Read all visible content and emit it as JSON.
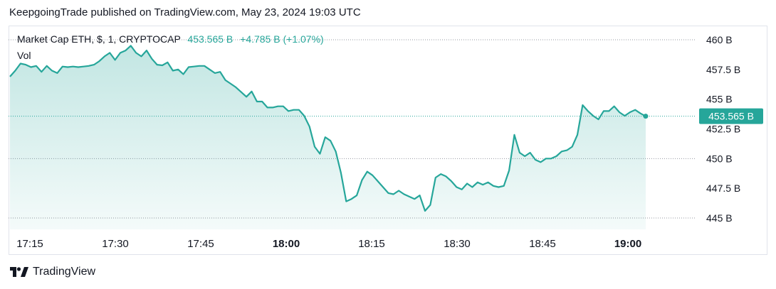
{
  "header": {
    "published_text": "KeepgoingTrade published on TradingView.com, May 23, 2024 19:03 UTC"
  },
  "legend": {
    "symbol": "Market Cap ETH, $, 1, CRYPTOCAP",
    "last": "453.565 B",
    "change": "+4.785 B (+1.07%)",
    "vol_label": "Vol"
  },
  "footer": {
    "brand": "TradingView",
    "logo_icon": "tradingview-logo-icon"
  },
  "colors": {
    "line": "#26a69a",
    "text": "#131722",
    "grid": "#e0e3eb",
    "badge": "#26a69a"
  },
  "chart_data": {
    "type": "area",
    "x_unit": "UTC time, 1-minute bars",
    "x_ticks": [
      {
        "label": "17:15",
        "t": 1035,
        "bold": false
      },
      {
        "label": "17:30",
        "t": 1050,
        "bold": false
      },
      {
        "label": "17:45",
        "t": 1065,
        "bold": false
      },
      {
        "label": "18:00",
        "t": 1080,
        "bold": true
      },
      {
        "label": "18:15",
        "t": 1095,
        "bold": false
      },
      {
        "label": "18:30",
        "t": 1110,
        "bold": false
      },
      {
        "label": "18:45",
        "t": 1125,
        "bold": false
      },
      {
        "label": "19:00",
        "t": 1140,
        "bold": true
      }
    ],
    "y_unit": "B",
    "y_ticks": [
      445,
      447.5,
      450,
      452.5,
      455,
      457.5,
      460
    ],
    "y_tick_labels": [
      "445 B",
      "447.5 B",
      "450 B",
      "452.5 B",
      "455 B",
      "457.5 B",
      "460 B"
    ],
    "ylim": [
      444.0,
      461.0
    ],
    "xlim": [
      1031.6,
      1163.2
    ],
    "reference_lines": [
      445,
      450,
      460
    ],
    "last_value": 453.565,
    "last_value_label": "453.565 B",
    "values": [
      456.9,
      457.4,
      458.0,
      457.9,
      457.7,
      457.8,
      457.3,
      457.8,
      457.4,
      457.2,
      457.75,
      457.7,
      457.75,
      457.7,
      457.75,
      457.8,
      457.9,
      458.2,
      458.6,
      458.9,
      458.3,
      458.9,
      459.1,
      459.5,
      458.9,
      458.6,
      459.1,
      458.4,
      457.9,
      457.85,
      458.1,
      457.4,
      457.5,
      457.1,
      457.7,
      457.75,
      457.8,
      457.8,
      457.5,
      457.2,
      457.3,
      456.6,
      456.3,
      456.0,
      455.6,
      455.2,
      455.65,
      454.8,
      454.8,
      454.3,
      454.3,
      454.4,
      454.4,
      454.0,
      454.1,
      454.1,
      453.6,
      452.7,
      451.0,
      450.4,
      451.8,
      451.5,
      450.6,
      448.8,
      446.4,
      446.6,
      446.9,
      448.2,
      448.9,
      448.6,
      448.1,
      447.6,
      447.1,
      447.0,
      447.3,
      447.0,
      446.8,
      446.6,
      446.9,
      445.6,
      446.1,
      448.4,
      448.7,
      448.5,
      448.1,
      447.6,
      447.4,
      447.9,
      447.6,
      448.0,
      447.8,
      448.0,
      447.7,
      447.6,
      447.7,
      449.0,
      452.0,
      450.5,
      450.2,
      450.5,
      449.9,
      449.7,
      450.0,
      450.0,
      450.2,
      450.6,
      450.7,
      451.0,
      452.0,
      454.5,
      454.0,
      453.6,
      453.3,
      454.0,
      454.0,
      454.4,
      453.9,
      453.6,
      453.9,
      454.1,
      453.8,
      453.565
    ],
    "marker": "last point circle"
  }
}
